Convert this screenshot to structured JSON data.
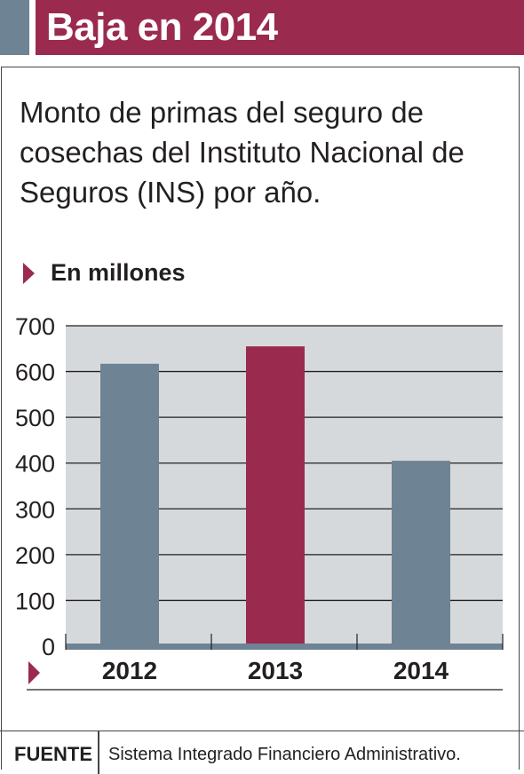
{
  "header": {
    "title": "Baja en 2014"
  },
  "subtitle": "Monto de primas del seguro de cosechas del Instituto Nacional de Seguros (INS) por año.",
  "unit_label": "En millones",
  "source": {
    "label": "FUENTE",
    "text": "Sistema Integrado Financiero Administrativo."
  },
  "colors": {
    "accent": "#9b2a4f",
    "bar_default": "#6e8394",
    "plot_bg": "#d6d9dc"
  },
  "chart_data": {
    "type": "bar",
    "title": "",
    "xlabel": "",
    "ylabel": "",
    "categories": [
      "2012",
      "2013",
      "2014"
    ],
    "values": [
      617,
      655,
      405
    ],
    "highlight_index": 1,
    "ylim": [
      0,
      700
    ],
    "yticks": [
      0,
      100,
      200,
      300,
      400,
      500,
      600,
      700
    ],
    "grid": true
  }
}
